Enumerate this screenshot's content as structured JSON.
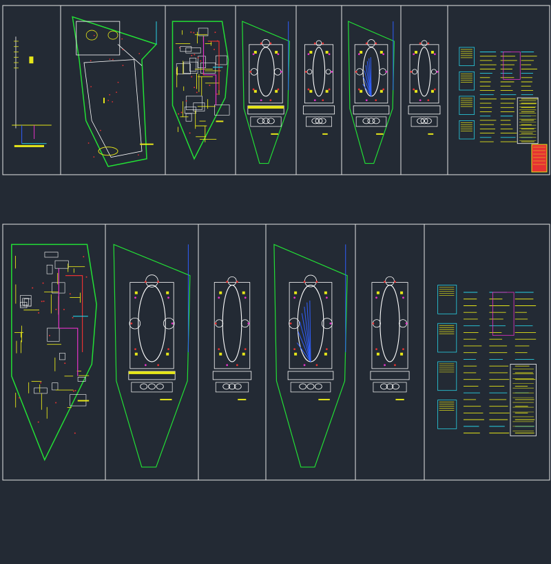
{
  "colors": {
    "background": "#232a34",
    "frame": "#e6e6e6",
    "wall": "#ffffff",
    "boundary": "#22e035",
    "wiring": "#e6e619",
    "cyan": "#29d3e6",
    "magenta": "#e633c8",
    "blue": "#2f5fff",
    "red": "#e63232",
    "green": "#22e035"
  },
  "rows": [
    {
      "panels": [
        {
          "kind": "riser"
        },
        {
          "kind": "site"
        },
        {
          "kind": "electrical"
        },
        {
          "kind": "mosque",
          "variant": "detailed"
        },
        {
          "kind": "mosque",
          "variant": "plain"
        },
        {
          "kind": "mosque",
          "variant": "fan"
        },
        {
          "kind": "mosque",
          "variant": "outline"
        },
        {
          "kind": "schedule"
        }
      ]
    },
    {
      "panels": [
        {
          "kind": "electrical"
        },
        {
          "kind": "mosque",
          "variant": "detailed"
        },
        {
          "kind": "mosque",
          "variant": "plain"
        },
        {
          "kind": "mosque",
          "variant": "fan"
        },
        {
          "kind": "mosque",
          "variant": "outline"
        },
        {
          "kind": "schedule"
        }
      ]
    }
  ]
}
